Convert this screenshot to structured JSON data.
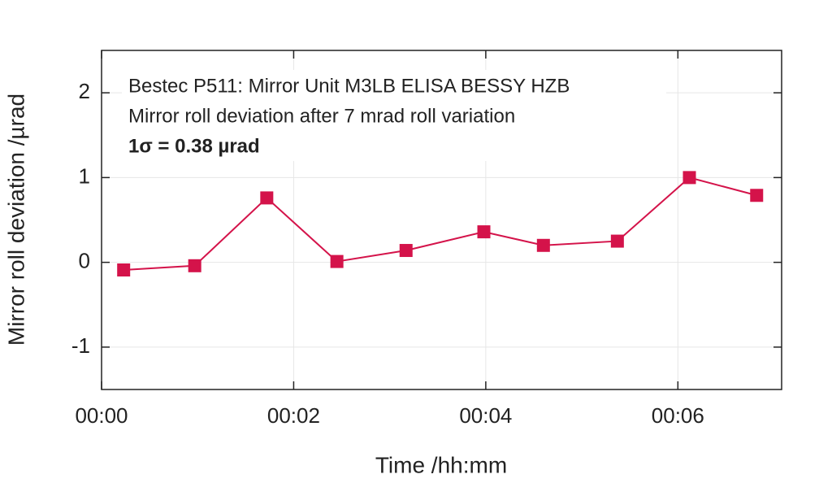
{
  "chart_data": {
    "type": "line",
    "annotations": [
      "Bestec P511: Mirror Unit M3LB ELISA BESSY HZB",
      "Mirror roll deviation after 7 mrad roll variation",
      "1σ = 0.38 µrad"
    ],
    "xlabel": "Time /hh:mm",
    "ylabel": "Mirror roll deviation /µrad",
    "x": [
      0.23,
      0.97,
      1.72,
      2.45,
      3.17,
      3.98,
      4.6,
      5.37,
      6.12,
      6.82
    ],
    "series": [
      {
        "name": "Mirror roll deviation",
        "color": "#d4134a",
        "values": [
          -0.09,
          -0.04,
          0.76,
          0.01,
          0.14,
          0.36,
          0.2,
          0.25,
          1.0,
          0.79
        ]
      }
    ],
    "xlim": [
      0,
      7.08
    ],
    "xticks": [
      {
        "value": 0,
        "label": "00:00"
      },
      {
        "value": 2,
        "label": "00:02"
      },
      {
        "value": 4,
        "label": "00:04"
      },
      {
        "value": 6,
        "label": "00:06"
      }
    ],
    "ylim": [
      -1.5,
      2.5
    ],
    "yticks": [
      -1,
      0,
      1,
      2
    ],
    "grid": true
  }
}
